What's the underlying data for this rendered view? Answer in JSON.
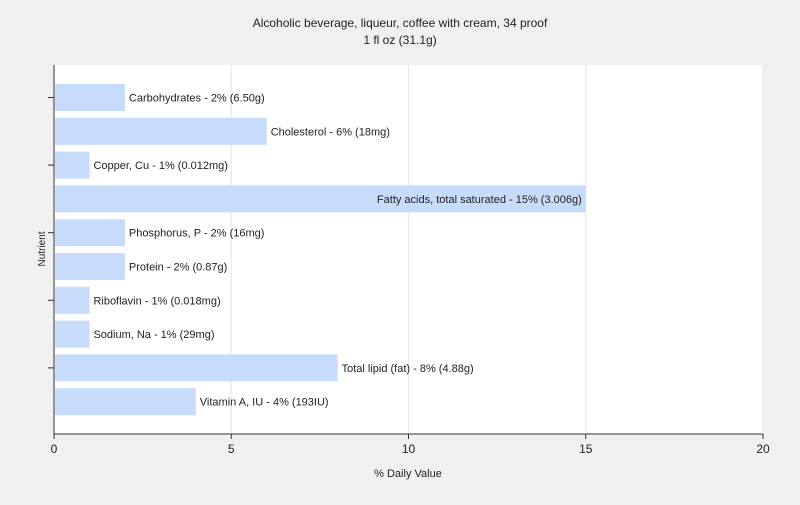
{
  "chart_data": {
    "type": "bar",
    "orientation": "horizontal",
    "title": "Alcoholic beverage, liqueur, coffee with cream, 34 proof",
    "subtitle": "1 fl oz (31.1g)",
    "xlabel": "% Daily Value",
    "ylabel": "Nutrient",
    "xlim": [
      0,
      20
    ],
    "xticks": [
      "0",
      "5",
      "10",
      "15",
      "20"
    ],
    "grid": true,
    "legend": "none",
    "bar_color": "#c6dcfa",
    "categories": [
      "Carbohydrates",
      "Cholesterol",
      "Copper, Cu",
      "Fatty acids, total saturated",
      "Phosphorus, P",
      "Protein",
      "Riboflavin",
      "Sodium, Na",
      "Total lipid (fat)",
      "Vitamin A, IU"
    ],
    "values": [
      2,
      6,
      1,
      15,
      2,
      2,
      1,
      1,
      8,
      4
    ],
    "labels": [
      "Carbohydrates - 2% (6.50g)",
      "Cholesterol - 6% (18mg)",
      "Copper, Cu - 1% (0.012mg)",
      "Fatty acids, total saturated - 15% (3.006g)",
      "Phosphorus, P - 2% (16mg)",
      "Protein - 2% (0.87g)",
      "Riboflavin - 1% (0.018mg)",
      "Sodium, Na - 1% (29mg)",
      "Total lipid (fat) - 8% (4.88g)",
      "Vitamin A, IU - 4% (193IU)"
    ]
  }
}
